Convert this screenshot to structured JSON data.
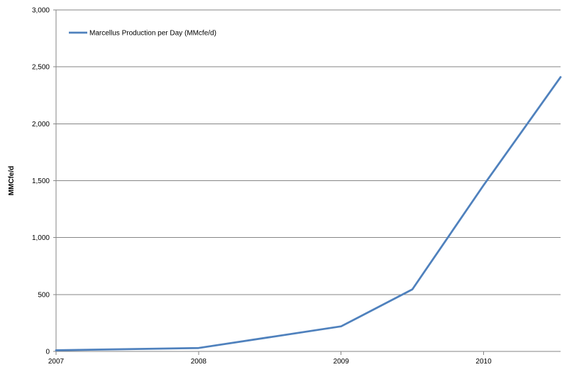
{
  "chart_data": {
    "type": "line",
    "title": "",
    "xlabel": "",
    "ylabel": "MMCfe/d",
    "x_ticks": [
      "2007",
      "2008",
      "2009",
      "2010"
    ],
    "y_ticks": [
      "0",
      "500",
      "1,000",
      "1,500",
      "2,000",
      "2,500",
      "3,000"
    ],
    "xlim": [
      2007,
      2010.54
    ],
    "ylim": [
      0,
      3000
    ],
    "grid": true,
    "legend": "top-left",
    "series": [
      {
        "name": "Marcellus Production per Day (MMcfe/d)",
        "color": "#4F81BD",
        "x": [
          2007.0,
          2008.0,
          2009.0,
          2009.5,
          2010.0,
          2010.54
        ],
        "y": [
          10,
          30,
          220,
          545,
          1460,
          2410
        ]
      }
    ]
  }
}
